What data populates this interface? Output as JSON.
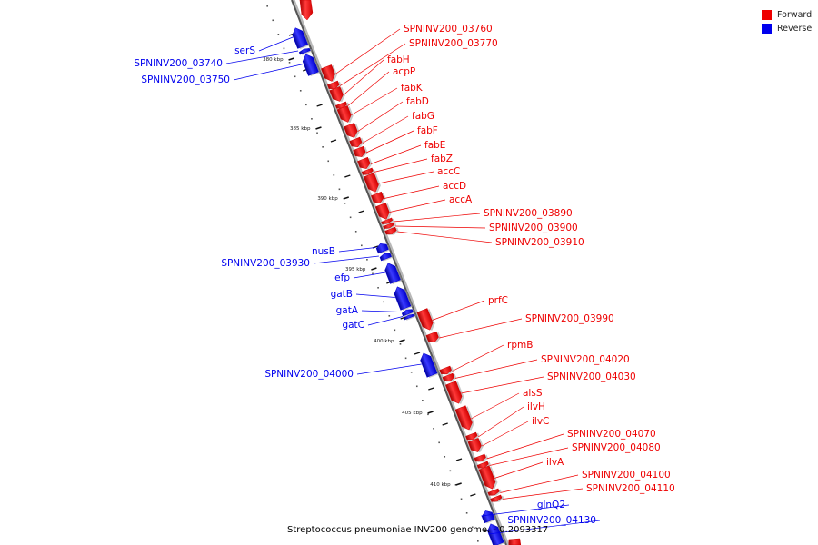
{
  "legend": [
    {
      "label": "Forward",
      "color": "#ee0000"
    },
    {
      "label": "Reverse",
      "color": "#0000ee"
    }
  ],
  "caption": "Streptococcus pneumoniae INV200 genome. - 0.2093317",
  "axis": {
    "unit": "kbp",
    "ticks": [
      {
        "value": 380,
        "label": "380 kbp"
      },
      {
        "value": 385,
        "label": "385 kbp"
      },
      {
        "value": 390,
        "label": "390 kbp"
      },
      {
        "value": 395,
        "label": "395 kbp"
      },
      {
        "value": 400,
        "label": "400 kbp"
      },
      {
        "value": 405,
        "label": "405 kbp"
      },
      {
        "value": 410,
        "label": "410 kbp"
      }
    ]
  },
  "genes": [
    {
      "name": "serS",
      "strand": "reverse"
    },
    {
      "name": "SPNINV200_03740",
      "strand": "reverse"
    },
    {
      "name": "SPNINV200_03750",
      "strand": "reverse"
    },
    {
      "name": "SPNINV200_03760",
      "strand": "forward"
    },
    {
      "name": "SPNINV200_03770",
      "strand": "forward"
    },
    {
      "name": "fabH",
      "strand": "forward"
    },
    {
      "name": "acpP",
      "strand": "forward"
    },
    {
      "name": "fabK",
      "strand": "forward"
    },
    {
      "name": "fabD",
      "strand": "forward"
    },
    {
      "name": "fabG",
      "strand": "forward"
    },
    {
      "name": "fabF",
      "strand": "forward"
    },
    {
      "name": "fabE",
      "strand": "forward"
    },
    {
      "name": "fabZ",
      "strand": "forward"
    },
    {
      "name": "accC",
      "strand": "forward"
    },
    {
      "name": "accD",
      "strand": "forward"
    },
    {
      "name": "accA",
      "strand": "forward"
    },
    {
      "name": "SPNINV200_03890",
      "strand": "forward"
    },
    {
      "name": "SPNINV200_03900",
      "strand": "forward"
    },
    {
      "name": "SPNINV200_03910",
      "strand": "forward"
    },
    {
      "name": "nusB",
      "strand": "reverse"
    },
    {
      "name": "SPNINV200_03930",
      "strand": "reverse"
    },
    {
      "name": "efp",
      "strand": "reverse"
    },
    {
      "name": "gatB",
      "strand": "reverse"
    },
    {
      "name": "gatA",
      "strand": "reverse"
    },
    {
      "name": "gatC",
      "strand": "reverse"
    },
    {
      "name": "prfC",
      "strand": "forward"
    },
    {
      "name": "SPNINV200_03990",
      "strand": "forward"
    },
    {
      "name": "SPNINV200_04000",
      "strand": "reverse"
    },
    {
      "name": "rpmB",
      "strand": "forward"
    },
    {
      "name": "SPNINV200_04020",
      "strand": "forward"
    },
    {
      "name": "SPNINV200_04030",
      "strand": "forward"
    },
    {
      "name": "alsS",
      "strand": "forward"
    },
    {
      "name": "ilvH",
      "strand": "forward"
    },
    {
      "name": "ilvC",
      "strand": "forward"
    },
    {
      "name": "SPNINV200_04070",
      "strand": "forward"
    },
    {
      "name": "SPNINV200_04080",
      "strand": "forward"
    },
    {
      "name": "ilvA",
      "strand": "forward"
    },
    {
      "name": "SPNINV200_04100",
      "strand": "forward"
    },
    {
      "name": "SPNINV200_04110",
      "strand": "forward"
    },
    {
      "name": "glnQ2",
      "strand": "reverse"
    },
    {
      "name": "SPNINV200_04130",
      "strand": "reverse"
    }
  ]
}
